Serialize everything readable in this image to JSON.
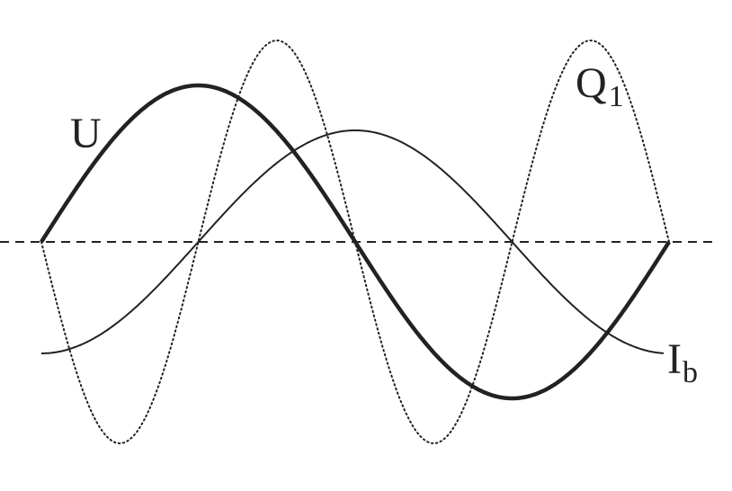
{
  "axis": {
    "style": "dashed",
    "color": "#222222"
  },
  "curves": [
    {
      "id": "U",
      "label": "U",
      "subscript": "",
      "style": "solid-thick",
      "color": "#222222"
    },
    {
      "id": "Ib",
      "label": "I",
      "subscript": "b",
      "style": "solid-thin",
      "color": "#222222"
    },
    {
      "id": "Q1",
      "label": "Q",
      "subscript": "1",
      "style": "dotted",
      "color": "#222222"
    }
  ]
}
